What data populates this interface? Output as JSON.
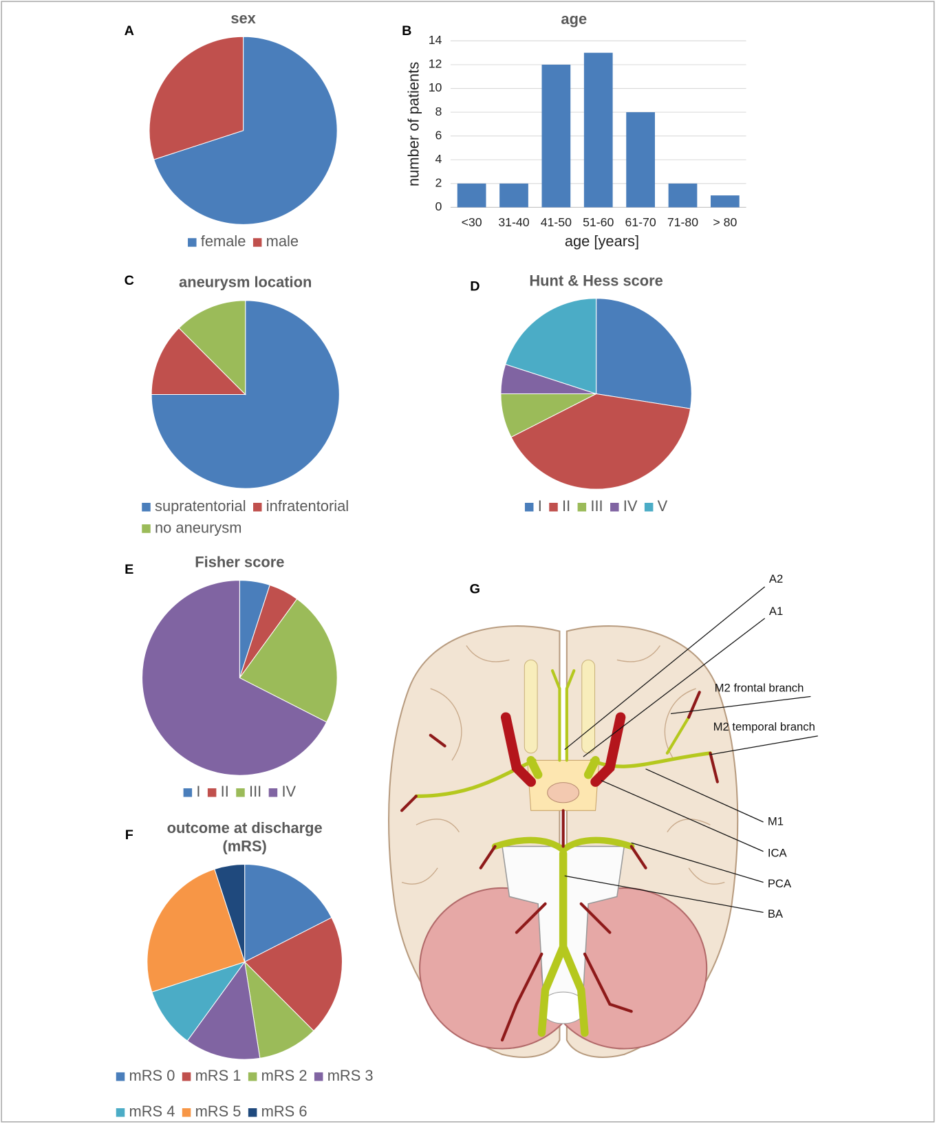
{
  "chart_data": [
    {
      "panel": "A",
      "type": "pie",
      "title": "sex",
      "categories": [
        "female",
        "male"
      ],
      "values": [
        28,
        12
      ],
      "colors": [
        "#4a7ebb",
        "#c0504d"
      ]
    },
    {
      "panel": "B",
      "type": "bar",
      "title": "age",
      "categories": [
        "<30",
        "31-40",
        "41-50",
        "51-60",
        "61-70",
        "71-80",
        "> 80"
      ],
      "values": [
        2,
        2,
        12,
        13,
        8,
        2,
        1
      ],
      "color": "#4a7ebb",
      "ylim": [
        0,
        14
      ],
      "yticks": [
        0,
        2,
        4,
        6,
        8,
        10,
        12,
        14
      ],
      "x_label": "age [years]",
      "y_label": "number of patients",
      "grid": true
    },
    {
      "panel": "C",
      "type": "pie",
      "title": "aneurysm location",
      "categories": [
        "supratentorial",
        "infratentorial",
        "no aneurysm"
      ],
      "values": [
        30,
        5,
        5
      ],
      "colors": [
        "#4a7ebb",
        "#c0504d",
        "#9bbb59"
      ]
    },
    {
      "panel": "D",
      "type": "pie",
      "title": "Hunt & Hess score",
      "categories": [
        "I",
        "II",
        "III",
        "IV",
        "V"
      ],
      "values": [
        11,
        16,
        3,
        2,
        8
      ],
      "colors": [
        "#4a7ebb",
        "#c0504d",
        "#9bbb59",
        "#8064a2",
        "#4bacc6"
      ]
    },
    {
      "panel": "E",
      "type": "pie",
      "title": "Fisher score",
      "categories": [
        "I",
        "II",
        "III",
        "IV"
      ],
      "values": [
        2,
        2,
        9,
        27
      ],
      "colors": [
        "#4a7ebb",
        "#c0504d",
        "#9bbb59",
        "#8064a2"
      ]
    },
    {
      "panel": "F",
      "type": "pie",
      "title": [
        "outcome at discharge",
        "(mRS)"
      ],
      "categories": [
        "mRS 0",
        "mRS 1",
        "mRS 2",
        "mRS 3",
        "mRS 4",
        "mRS 5",
        "mRS 6"
      ],
      "values": [
        7,
        8,
        4,
        5,
        4,
        10,
        2
      ],
      "colors": [
        "#4a7ebb",
        "#c0504d",
        "#9bbb59",
        "#8064a2",
        "#4bacc6",
        "#f79646",
        "#1f497d"
      ]
    }
  ],
  "diagram": {
    "panel": "G",
    "labels": [
      "A2",
      "A1",
      "M2 frontal branch",
      "M2 temporal branch",
      "M1",
      "ICA",
      "PCA",
      "BA"
    ]
  }
}
